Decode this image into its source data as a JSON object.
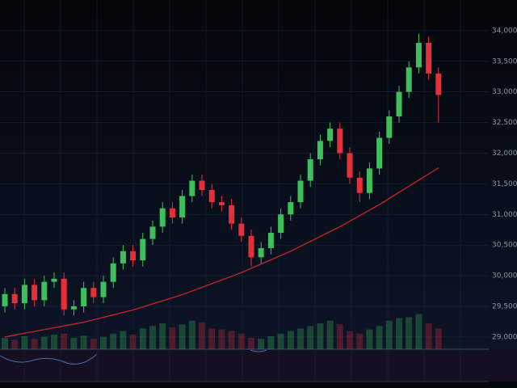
{
  "chart_data": {
    "type": "candlestick",
    "up_color": "#3fbf5c",
    "down_color": "#e5303a",
    "grid": true,
    "ylim": [
      28800,
      34500
    ],
    "yticks": [
      {
        "value": 29000,
        "label": "29,000"
      },
      {
        "value": 29500,
        "label": "29,500"
      },
      {
        "value": 30000,
        "label": "30,000"
      },
      {
        "value": 30500,
        "label": "30,500"
      },
      {
        "value": 31000,
        "label": "31,000"
      },
      {
        "value": 31500,
        "label": "31,500"
      },
      {
        "value": 32000,
        "label": "32,000"
      },
      {
        "value": 32500,
        "label": "32,500"
      },
      {
        "value": 33000,
        "label": "33,000"
      },
      {
        "value": 33500,
        "label": "33,500"
      },
      {
        "value": 34000,
        "label": "34,000"
      }
    ],
    "open": [
      29500,
      29700,
      29550,
      29850,
      29600,
      29900,
      29950,
      29450,
      29500,
      29800,
      29650,
      29900,
      30200,
      30400,
      30250,
      30600,
      30800,
      31100,
      30950,
      31300,
      31550,
      31400,
      31200,
      31150,
      30850,
      30650,
      30300,
      30450,
      30700,
      31000,
      31200,
      31550,
      31900,
      32200,
      32400,
      32000,
      31600,
      31350,
      31750,
      32250,
      32600,
      33000,
      33400,
      33800,
      33300
    ],
    "high": [
      29800,
      29800,
      29950,
      29950,
      30000,
      30050,
      30050,
      29600,
      29900,
      29900,
      30000,
      30300,
      30500,
      30500,
      30700,
      30900,
      31200,
      31200,
      31400,
      31650,
      31650,
      31500,
      31300,
      31250,
      30950,
      30750,
      30550,
      30800,
      31100,
      31300,
      31650,
      32000,
      32300,
      32500,
      32500,
      32100,
      31700,
      31850,
      32350,
      32700,
      33100,
      33500,
      33950,
      33900,
      33400
    ],
    "low": [
      29400,
      29450,
      29450,
      29500,
      29500,
      29800,
      29350,
      29350,
      29400,
      29550,
      29550,
      29800,
      30100,
      30150,
      30150,
      30500,
      30700,
      30850,
      30850,
      31200,
      31300,
      31100,
      31050,
      30750,
      30550,
      30150,
      30200,
      30350,
      30600,
      30900,
      31100,
      31450,
      31800,
      32100,
      31900,
      31500,
      31200,
      31250,
      31650,
      32150,
      32500,
      32900,
      33300,
      33200,
      32500
    ],
    "close": [
      29700,
      29550,
      29850,
      29600,
      29900,
      29950,
      29450,
      29500,
      29800,
      29650,
      29900,
      30200,
      30400,
      30250,
      30600,
      30800,
      31100,
      30950,
      31300,
      31550,
      31400,
      31200,
      31150,
      30850,
      30650,
      30300,
      30450,
      30700,
      31000,
      31200,
      31550,
      31900,
      32200,
      32400,
      32000,
      31600,
      31350,
      31750,
      32250,
      32600,
      33000,
      33400,
      33800,
      33300,
      32950
    ],
    "ma": {
      "color": "#c8242c",
      "values": [
        29000,
        29030,
        29060,
        29090,
        29120,
        29150,
        29180,
        29210,
        29240,
        29280,
        29320,
        29360,
        29400,
        29440,
        29490,
        29540,
        29590,
        29640,
        29690,
        29750,
        29810,
        29870,
        29930,
        29990,
        30050,
        30120,
        30190,
        30260,
        30330,
        30400,
        30480,
        30560,
        30640,
        30720,
        30800,
        30890,
        30980,
        31070,
        31160,
        31260,
        31360,
        31460,
        31560,
        31660,
        31760
      ]
    },
    "volume_ylim": [
      0,
      100
    ],
    "volume": [
      22,
      18,
      25,
      20,
      24,
      28,
      30,
      22,
      26,
      20,
      24,
      30,
      35,
      28,
      40,
      45,
      50,
      42,
      48,
      55,
      52,
      40,
      38,
      35,
      30,
      22,
      20,
      25,
      30,
      35,
      40,
      45,
      50,
      55,
      48,
      35,
      30,
      38,
      45,
      55,
      60,
      62,
      68,
      50,
      40
    ]
  }
}
